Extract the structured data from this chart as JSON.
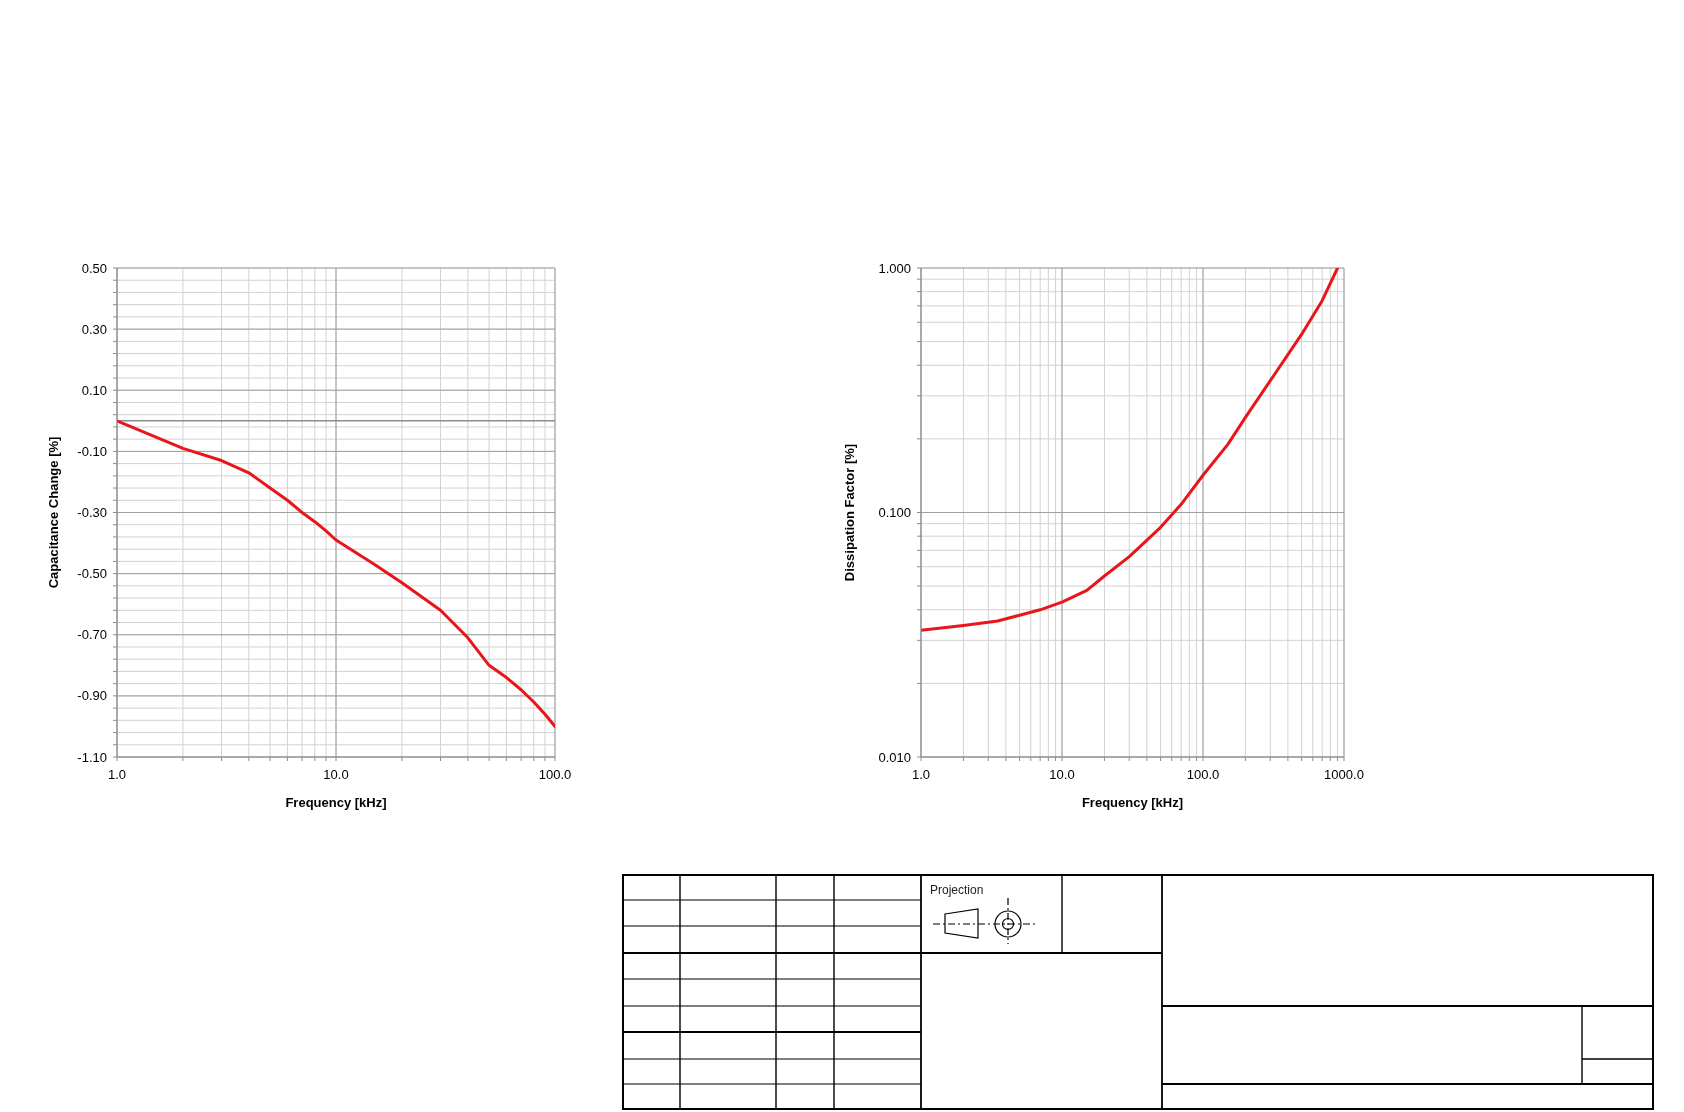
{
  "chart_data": [
    {
      "type": "line",
      "xlabel": "Frequency [kHz]",
      "ylabel": "Capacitance Change [%]",
      "log": "x",
      "grid": true,
      "line_style": "solid",
      "xlim": [
        1,
        100
      ],
      "xticks": [
        {
          "value": 1,
          "label": "1.0"
        },
        {
          "value": 2,
          "label": null
        },
        {
          "value": 3,
          "label": null
        },
        {
          "value": 4,
          "label": null
        },
        {
          "value": 5,
          "label": null
        },
        {
          "value": 6,
          "label": null
        },
        {
          "value": 7,
          "label": null
        },
        {
          "value": 8,
          "label": null
        },
        {
          "value": 9,
          "label": null
        },
        {
          "value": 10,
          "label": "10.0"
        },
        {
          "value": 20,
          "label": null
        },
        {
          "value": 30,
          "label": null
        },
        {
          "value": 40,
          "label": null
        },
        {
          "value": 50,
          "label": null
        },
        {
          "value": 60,
          "label": null
        },
        {
          "value": 70,
          "label": null
        },
        {
          "value": 80,
          "label": null
        },
        {
          "value": 90,
          "label": null
        },
        {
          "value": 100,
          "label": "100.0"
        }
      ],
      "ylim": [
        -1.1,
        0.5
      ],
      "yticks": [
        {
          "value": -1.1,
          "label": "-1.10"
        },
        {
          "value": -1.06,
          "label": null
        },
        {
          "value": -1.02,
          "label": null
        },
        {
          "value": -0.98,
          "label": null
        },
        {
          "value": -0.94,
          "label": null
        },
        {
          "value": -0.9,
          "label": "-0.90"
        },
        {
          "value": -0.86,
          "label": null
        },
        {
          "value": -0.82,
          "label": null
        },
        {
          "value": -0.78,
          "label": null
        },
        {
          "value": -0.74,
          "label": null
        },
        {
          "value": -0.7,
          "label": "-0.70"
        },
        {
          "value": -0.66,
          "label": null
        },
        {
          "value": -0.62,
          "label": null
        },
        {
          "value": -0.58,
          "label": null
        },
        {
          "value": -0.54,
          "label": null
        },
        {
          "value": -0.5,
          "label": "-0.50"
        },
        {
          "value": -0.46,
          "label": null
        },
        {
          "value": -0.42,
          "label": null
        },
        {
          "value": -0.38,
          "label": null
        },
        {
          "value": -0.34,
          "label": null
        },
        {
          "value": -0.3,
          "label": "-0.30"
        },
        {
          "value": -0.26,
          "label": null
        },
        {
          "value": -0.22,
          "label": null
        },
        {
          "value": -0.18,
          "label": null
        },
        {
          "value": -0.14,
          "label": null
        },
        {
          "value": -0.1,
          "label": "-0.10"
        },
        {
          "value": -0.06,
          "label": null
        },
        {
          "value": -0.02,
          "label": null
        },
        {
          "value": 0.02,
          "label": null
        },
        {
          "value": 0.06,
          "label": null
        },
        {
          "value": 0.1,
          "label": "0.10"
        },
        {
          "value": 0.14,
          "label": null
        },
        {
          "value": 0.18,
          "label": null
        },
        {
          "value": 0.22,
          "label": null
        },
        {
          "value": 0.26,
          "label": null
        },
        {
          "value": 0.3,
          "label": "0.30"
        },
        {
          "value": 0.34,
          "label": null
        },
        {
          "value": 0.38,
          "label": null
        },
        {
          "value": 0.42,
          "label": null
        },
        {
          "value": 0.46,
          "label": null
        },
        {
          "value": 0.5,
          "label": "0.50"
        }
      ],
      "ref_lines": [
        {
          "axis": "y",
          "value": 0,
          "color": "#8c8c8c"
        }
      ],
      "series": [
        {
          "color": "#e8161b",
          "x": [
            1,
            2,
            3,
            4,
            5,
            6,
            7,
            8,
            9,
            10,
            15,
            20,
            30,
            40,
            50,
            60,
            70,
            80,
            90,
            100
          ],
          "values": [
            0,
            -0.09,
            -0.13,
            -0.17,
            -0.22,
            -0.26,
            -0.3,
            -0.33,
            -0.36,
            -0.39,
            -0.47,
            -0.53,
            -0.62,
            -0.71,
            -0.8,
            -0.84,
            -0.88,
            -0.92,
            -0.96,
            -1.0
          ]
        }
      ]
    },
    {
      "type": "line",
      "xlabel": "Frequency [kHz]",
      "ylabel": "Dissipation Factor [%]",
      "log": "xy",
      "grid": true,
      "line_style": "solid",
      "xlim": [
        1,
        1000
      ],
      "xticks": [
        {
          "value": 1,
          "label": "1.0"
        },
        {
          "value": 2,
          "label": null
        },
        {
          "value": 3,
          "label": null
        },
        {
          "value": 4,
          "label": null
        },
        {
          "value": 5,
          "label": null
        },
        {
          "value": 6,
          "label": null
        },
        {
          "value": 7,
          "label": null
        },
        {
          "value": 8,
          "label": null
        },
        {
          "value": 9,
          "label": null
        },
        {
          "value": 10,
          "label": "10.0"
        },
        {
          "value": 20,
          "label": null
        },
        {
          "value": 30,
          "label": null
        },
        {
          "value": 40,
          "label": null
        },
        {
          "value": 50,
          "label": null
        },
        {
          "value": 60,
          "label": null
        },
        {
          "value": 70,
          "label": null
        },
        {
          "value": 80,
          "label": null
        },
        {
          "value": 90,
          "label": null
        },
        {
          "value": 100,
          "label": "100.0"
        },
        {
          "value": 200,
          "label": null
        },
        {
          "value": 300,
          "label": null
        },
        {
          "value": 400,
          "label": null
        },
        {
          "value": 500,
          "label": null
        },
        {
          "value": 600,
          "label": null
        },
        {
          "value": 700,
          "label": null
        },
        {
          "value": 800,
          "label": null
        },
        {
          "value": 900,
          "label": null
        },
        {
          "value": 1000,
          "label": "1000.0"
        }
      ],
      "ylim": [
        0.01,
        1
      ],
      "yticks": [
        {
          "value": 0.01,
          "label": "0.010"
        },
        {
          "value": 0.02,
          "label": null
        },
        {
          "value": 0.03,
          "label": null
        },
        {
          "value": 0.04,
          "label": null
        },
        {
          "value": 0.05,
          "label": null
        },
        {
          "value": 0.06,
          "label": null
        },
        {
          "value": 0.07,
          "label": null
        },
        {
          "value": 0.08,
          "label": null
        },
        {
          "value": 0.09,
          "label": null
        },
        {
          "value": 0.1,
          "label": "0.100"
        },
        {
          "value": 0.2,
          "label": null
        },
        {
          "value": 0.3,
          "label": null
        },
        {
          "value": 0.4,
          "label": null
        },
        {
          "value": 0.5,
          "label": null
        },
        {
          "value": 0.6,
          "label": null
        },
        {
          "value": 0.7,
          "label": null
        },
        {
          "value": 0.8,
          "label": null
        },
        {
          "value": 0.9,
          "label": null
        },
        {
          "value": 1,
          "label": "1.000"
        }
      ],
      "series": [
        {
          "color": "#e8161b",
          "x": [
            1,
            2,
            3.5,
            5,
            7,
            10,
            15,
            20,
            30,
            50,
            70,
            100,
            150,
            200,
            300,
            500,
            700,
            900
          ],
          "values": [
            0.033,
            0.0345,
            0.036,
            0.038,
            0.04,
            0.043,
            0.048,
            0.055,
            0.066,
            0.087,
            0.108,
            0.142,
            0.19,
            0.245,
            0.346,
            0.535,
            0.735,
            1.0
          ]
        }
      ]
    },
    {
      "type": "other",
      "annotations": [
        "Projection"
      ]
    }
  ]
}
